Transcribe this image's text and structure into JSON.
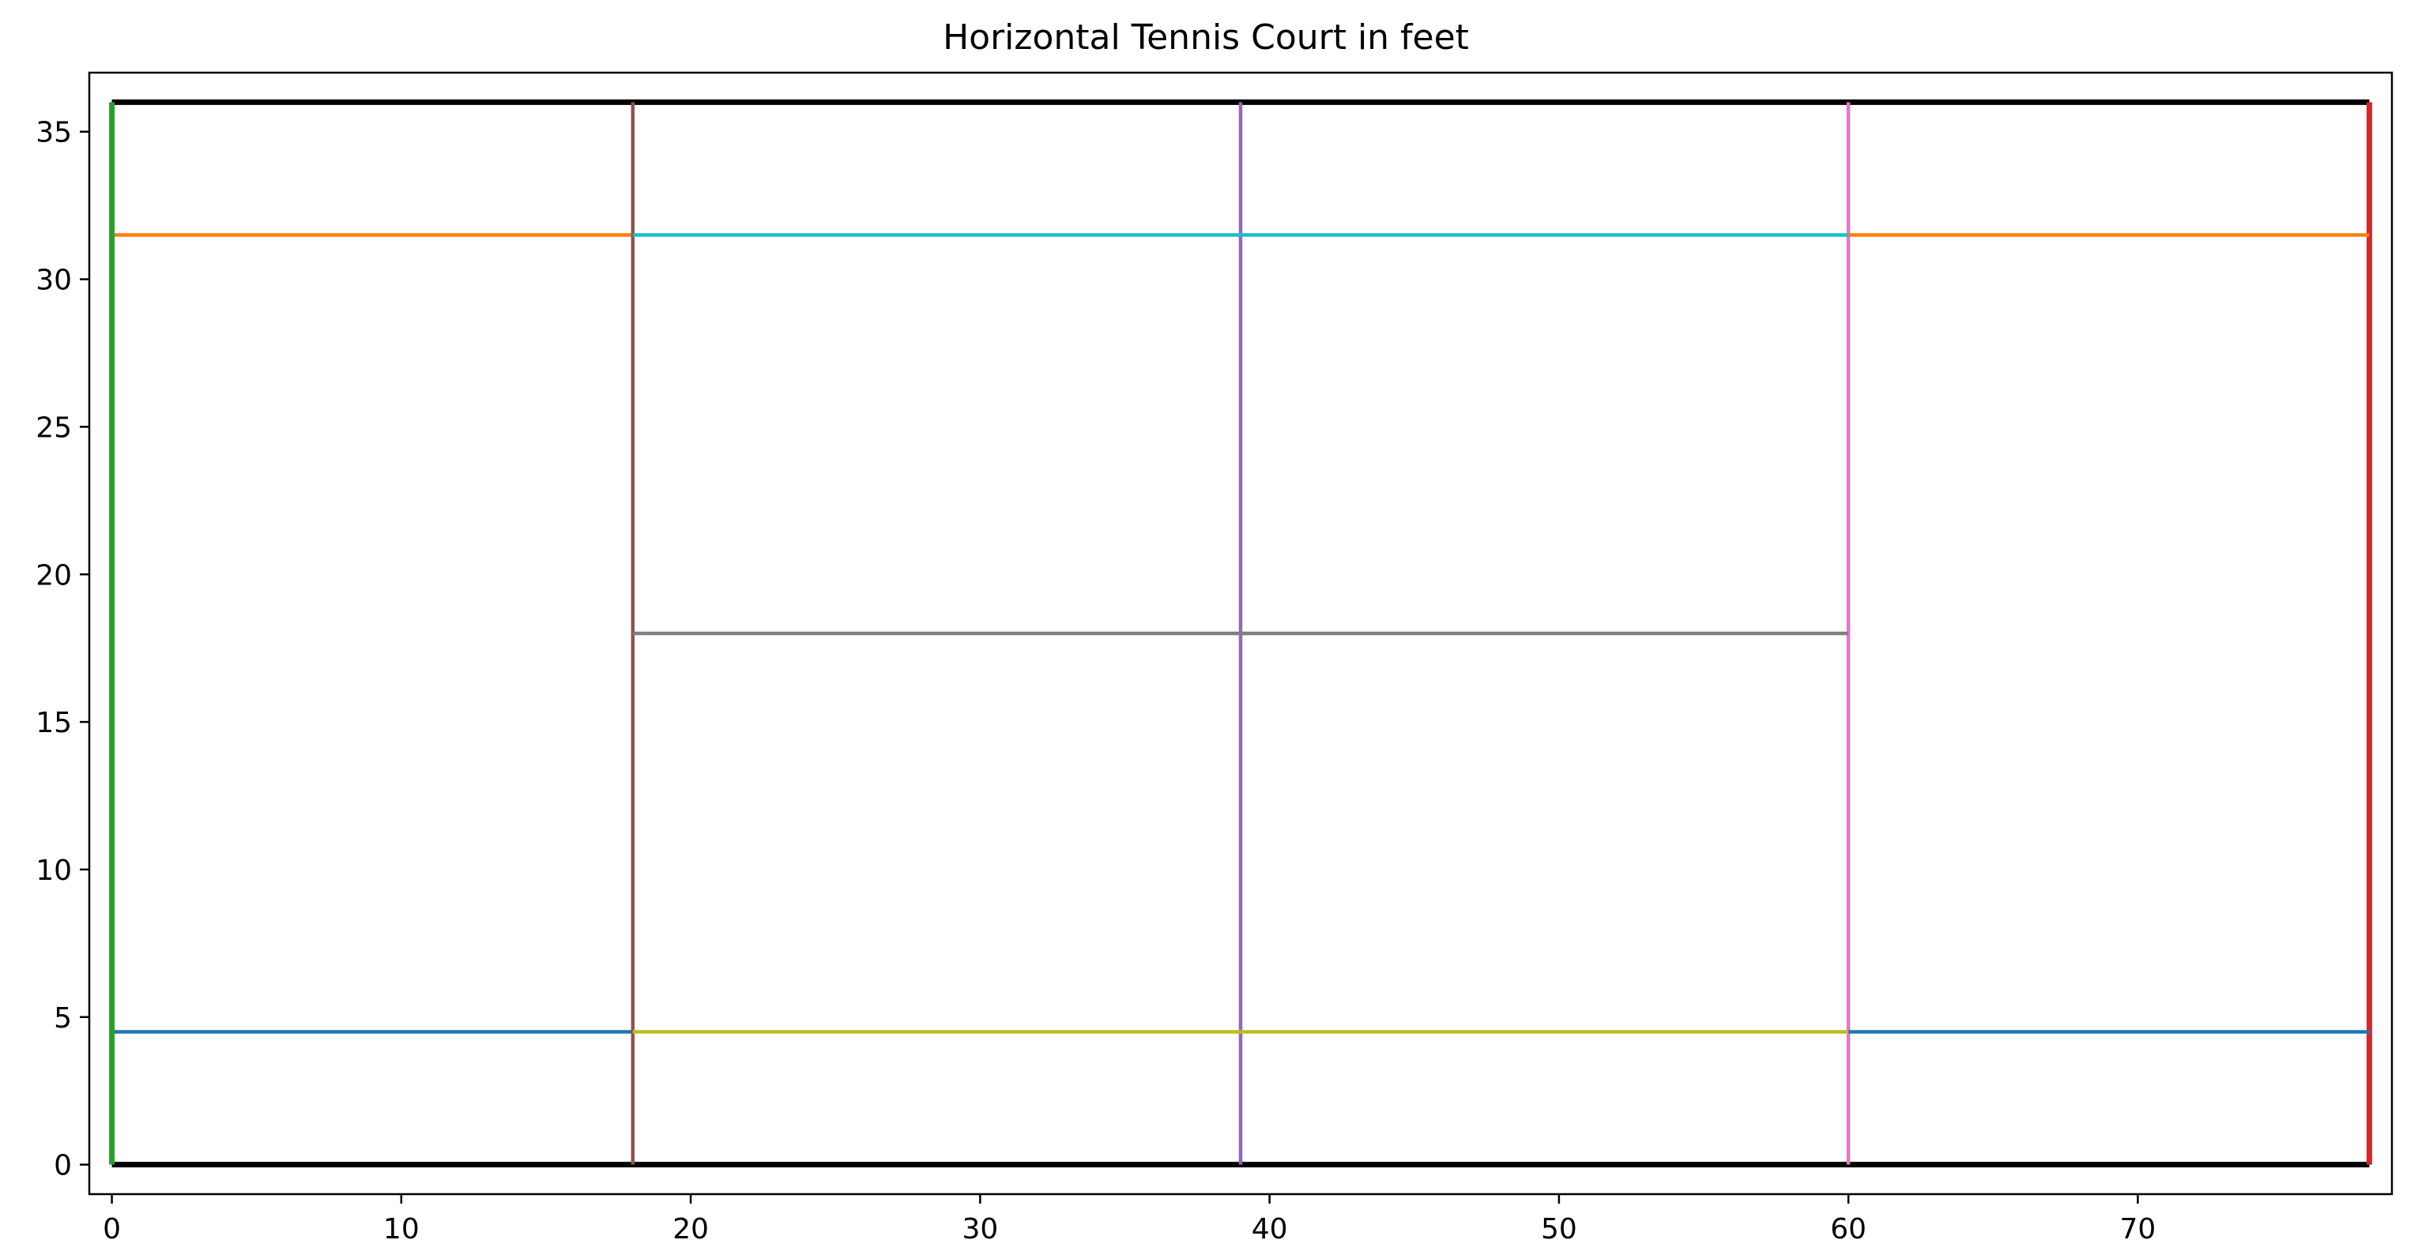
{
  "chart_data": {
    "type": "line",
    "title": "Horizontal Tennis Court in feet",
    "xlabel": "",
    "ylabel": "",
    "xlim": [
      -0.78,
      78.78
    ],
    "ylim": [
      -1.0,
      37.0
    ],
    "xticks": [
      0,
      10,
      20,
      30,
      40,
      50,
      60,
      70
    ],
    "yticks": [
      0,
      5,
      10,
      15,
      20,
      25,
      30,
      35
    ],
    "grid": false,
    "legend": "none",
    "series": [
      {
        "x": [
          0,
          78
        ],
        "y": [
          0,
          0
        ],
        "color": "#000000",
        "width": "thick"
      },
      {
        "x": [
          0,
          78
        ],
        "y": [
          36,
          36
        ],
        "color": "#000000",
        "width": "thick"
      },
      {
        "x": [
          0,
          18
        ],
        "y": [
          4.5,
          4.5
        ],
        "color": "#1f77b4",
        "width": "normal"
      },
      {
        "x": [
          0,
          18
        ],
        "y": [
          31.5,
          31.5
        ],
        "color": "#ff7f0e",
        "width": "normal"
      },
      {
        "x": [
          0,
          0
        ],
        "y": [
          0,
          36
        ],
        "color": "#2ca02c",
        "width": "thick"
      },
      {
        "x": [
          78,
          78
        ],
        "y": [
          0,
          36
        ],
        "color": "#d62728",
        "width": "thick"
      },
      {
        "x": [
          39,
          39
        ],
        "y": [
          0,
          36
        ],
        "color": "#9467bd",
        "width": "normal"
      },
      {
        "x": [
          18,
          18
        ],
        "y": [
          0,
          36
        ],
        "color": "#8c564b",
        "width": "normal"
      },
      {
        "x": [
          60,
          60
        ],
        "y": [
          0,
          36
        ],
        "color": "#e377c2",
        "width": "normal"
      },
      {
        "x": [
          18,
          60
        ],
        "y": [
          18,
          18
        ],
        "color": "#7f7f7f",
        "width": "normal"
      },
      {
        "x": [
          18,
          60
        ],
        "y": [
          4.5,
          4.5
        ],
        "color": "#bcbd22",
        "width": "normal"
      },
      {
        "x": [
          18,
          60
        ],
        "y": [
          31.5,
          31.5
        ],
        "color": "#17becf",
        "width": "normal"
      },
      {
        "x": [
          60,
          78
        ],
        "y": [
          4.5,
          4.5
        ],
        "color": "#1f77b4",
        "width": "normal"
      },
      {
        "x": [
          60,
          78
        ],
        "y": [
          31.5,
          31.5
        ],
        "color": "#ff7f0e",
        "width": "normal"
      }
    ]
  }
}
